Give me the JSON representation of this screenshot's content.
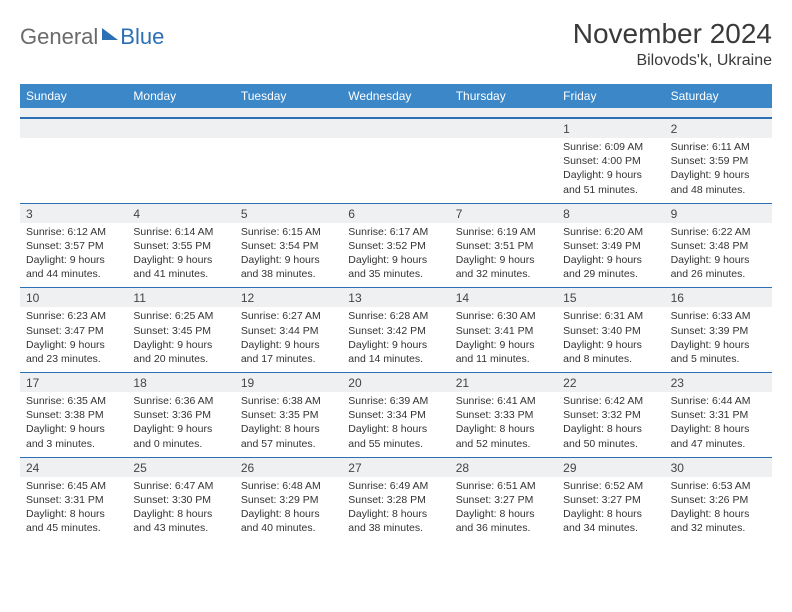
{
  "brand": {
    "part1": "General",
    "part2": "Blue"
  },
  "title": {
    "month": "November 2024",
    "location": "Bilovods'k, Ukraine"
  },
  "colors": {
    "header_bg": "#3b87c8",
    "divider": "#2c6fb5",
    "daynum_bg": "#eef0f1",
    "text": "#333333"
  },
  "dow": [
    "Sunday",
    "Monday",
    "Tuesday",
    "Wednesday",
    "Thursday",
    "Friday",
    "Saturday"
  ],
  "weeks": [
    [
      {
        "n": "",
        "sr": "",
        "ss": "",
        "dl": ""
      },
      {
        "n": "",
        "sr": "",
        "ss": "",
        "dl": ""
      },
      {
        "n": "",
        "sr": "",
        "ss": "",
        "dl": ""
      },
      {
        "n": "",
        "sr": "",
        "ss": "",
        "dl": ""
      },
      {
        "n": "",
        "sr": "",
        "ss": "",
        "dl": ""
      },
      {
        "n": "1",
        "sr": "Sunrise: 6:09 AM",
        "ss": "Sunset: 4:00 PM",
        "dl": "Daylight: 9 hours and 51 minutes."
      },
      {
        "n": "2",
        "sr": "Sunrise: 6:11 AM",
        "ss": "Sunset: 3:59 PM",
        "dl": "Daylight: 9 hours and 48 minutes."
      }
    ],
    [
      {
        "n": "3",
        "sr": "Sunrise: 6:12 AM",
        "ss": "Sunset: 3:57 PM",
        "dl": "Daylight: 9 hours and 44 minutes."
      },
      {
        "n": "4",
        "sr": "Sunrise: 6:14 AM",
        "ss": "Sunset: 3:55 PM",
        "dl": "Daylight: 9 hours and 41 minutes."
      },
      {
        "n": "5",
        "sr": "Sunrise: 6:15 AM",
        "ss": "Sunset: 3:54 PM",
        "dl": "Daylight: 9 hours and 38 minutes."
      },
      {
        "n": "6",
        "sr": "Sunrise: 6:17 AM",
        "ss": "Sunset: 3:52 PM",
        "dl": "Daylight: 9 hours and 35 minutes."
      },
      {
        "n": "7",
        "sr": "Sunrise: 6:19 AM",
        "ss": "Sunset: 3:51 PM",
        "dl": "Daylight: 9 hours and 32 minutes."
      },
      {
        "n": "8",
        "sr": "Sunrise: 6:20 AM",
        "ss": "Sunset: 3:49 PM",
        "dl": "Daylight: 9 hours and 29 minutes."
      },
      {
        "n": "9",
        "sr": "Sunrise: 6:22 AM",
        "ss": "Sunset: 3:48 PM",
        "dl": "Daylight: 9 hours and 26 minutes."
      }
    ],
    [
      {
        "n": "10",
        "sr": "Sunrise: 6:23 AM",
        "ss": "Sunset: 3:47 PM",
        "dl": "Daylight: 9 hours and 23 minutes."
      },
      {
        "n": "11",
        "sr": "Sunrise: 6:25 AM",
        "ss": "Sunset: 3:45 PM",
        "dl": "Daylight: 9 hours and 20 minutes."
      },
      {
        "n": "12",
        "sr": "Sunrise: 6:27 AM",
        "ss": "Sunset: 3:44 PM",
        "dl": "Daylight: 9 hours and 17 minutes."
      },
      {
        "n": "13",
        "sr": "Sunrise: 6:28 AM",
        "ss": "Sunset: 3:42 PM",
        "dl": "Daylight: 9 hours and 14 minutes."
      },
      {
        "n": "14",
        "sr": "Sunrise: 6:30 AM",
        "ss": "Sunset: 3:41 PM",
        "dl": "Daylight: 9 hours and 11 minutes."
      },
      {
        "n": "15",
        "sr": "Sunrise: 6:31 AM",
        "ss": "Sunset: 3:40 PM",
        "dl": "Daylight: 9 hours and 8 minutes."
      },
      {
        "n": "16",
        "sr": "Sunrise: 6:33 AM",
        "ss": "Sunset: 3:39 PM",
        "dl": "Daylight: 9 hours and 5 minutes."
      }
    ],
    [
      {
        "n": "17",
        "sr": "Sunrise: 6:35 AM",
        "ss": "Sunset: 3:38 PM",
        "dl": "Daylight: 9 hours and 3 minutes."
      },
      {
        "n": "18",
        "sr": "Sunrise: 6:36 AM",
        "ss": "Sunset: 3:36 PM",
        "dl": "Daylight: 9 hours and 0 minutes."
      },
      {
        "n": "19",
        "sr": "Sunrise: 6:38 AM",
        "ss": "Sunset: 3:35 PM",
        "dl": "Daylight: 8 hours and 57 minutes."
      },
      {
        "n": "20",
        "sr": "Sunrise: 6:39 AM",
        "ss": "Sunset: 3:34 PM",
        "dl": "Daylight: 8 hours and 55 minutes."
      },
      {
        "n": "21",
        "sr": "Sunrise: 6:41 AM",
        "ss": "Sunset: 3:33 PM",
        "dl": "Daylight: 8 hours and 52 minutes."
      },
      {
        "n": "22",
        "sr": "Sunrise: 6:42 AM",
        "ss": "Sunset: 3:32 PM",
        "dl": "Daylight: 8 hours and 50 minutes."
      },
      {
        "n": "23",
        "sr": "Sunrise: 6:44 AM",
        "ss": "Sunset: 3:31 PM",
        "dl": "Daylight: 8 hours and 47 minutes."
      }
    ],
    [
      {
        "n": "24",
        "sr": "Sunrise: 6:45 AM",
        "ss": "Sunset: 3:31 PM",
        "dl": "Daylight: 8 hours and 45 minutes."
      },
      {
        "n": "25",
        "sr": "Sunrise: 6:47 AM",
        "ss": "Sunset: 3:30 PM",
        "dl": "Daylight: 8 hours and 43 minutes."
      },
      {
        "n": "26",
        "sr": "Sunrise: 6:48 AM",
        "ss": "Sunset: 3:29 PM",
        "dl": "Daylight: 8 hours and 40 minutes."
      },
      {
        "n": "27",
        "sr": "Sunrise: 6:49 AM",
        "ss": "Sunset: 3:28 PM",
        "dl": "Daylight: 8 hours and 38 minutes."
      },
      {
        "n": "28",
        "sr": "Sunrise: 6:51 AM",
        "ss": "Sunset: 3:27 PM",
        "dl": "Daylight: 8 hours and 36 minutes."
      },
      {
        "n": "29",
        "sr": "Sunrise: 6:52 AM",
        "ss": "Sunset: 3:27 PM",
        "dl": "Daylight: 8 hours and 34 minutes."
      },
      {
        "n": "30",
        "sr": "Sunrise: 6:53 AM",
        "ss": "Sunset: 3:26 PM",
        "dl": "Daylight: 8 hours and 32 minutes."
      }
    ]
  ]
}
